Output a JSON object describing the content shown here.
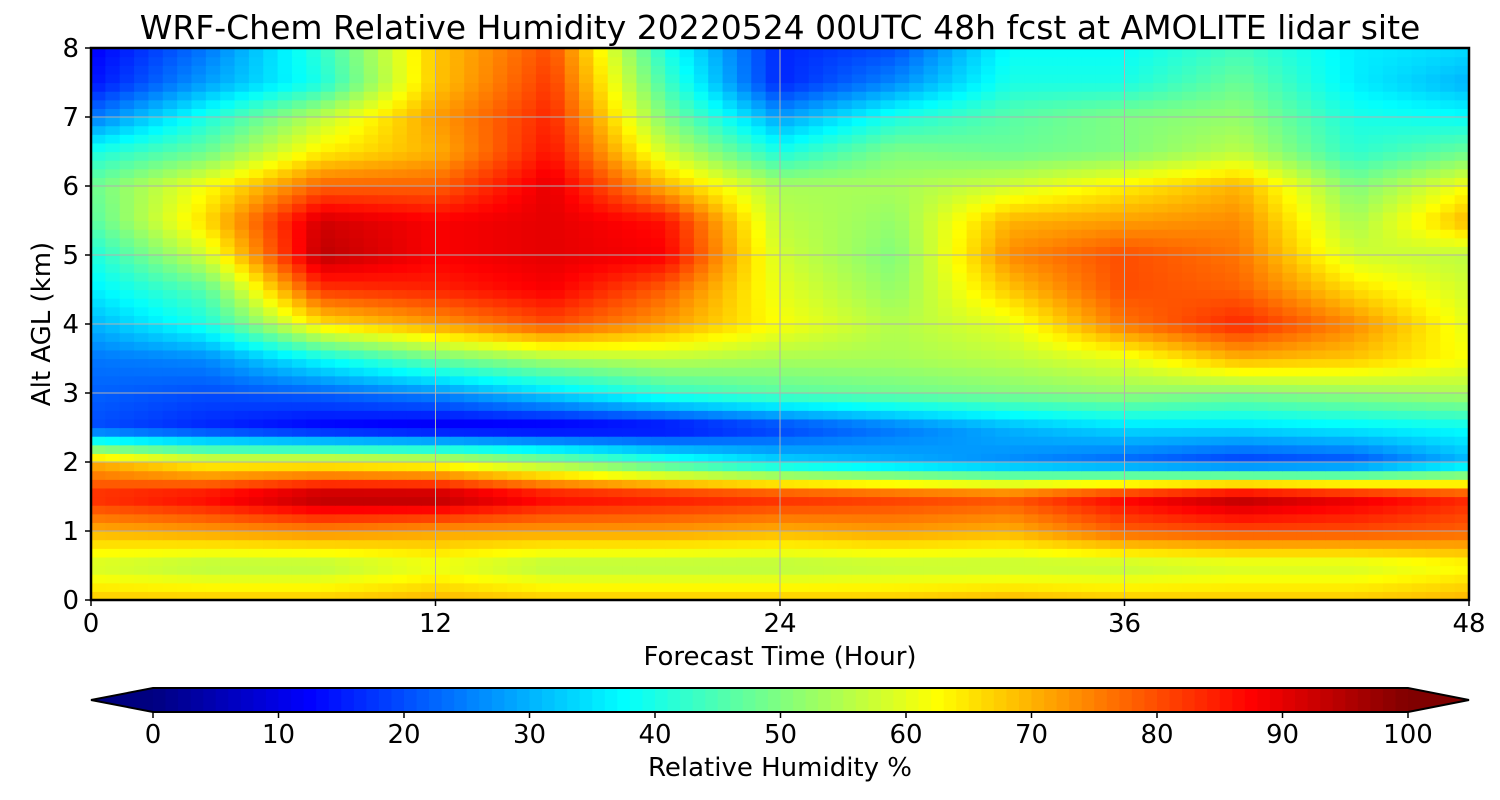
{
  "chart_data": {
    "type": "heatmap",
    "title": "WRF-Chem Relative Humidity 20220524 00UTC 48h fcst at AMOLITE lidar site",
    "xlabel": "Forecast Time (Hour)",
    "ylabel": "Alt AGL (km)",
    "xlim": [
      0,
      48
    ],
    "ylim": [
      0,
      8
    ],
    "x_ticks": [
      0,
      12,
      24,
      36,
      48
    ],
    "y_ticks": [
      0,
      1,
      2,
      3,
      4,
      5,
      6,
      7,
      8
    ],
    "grid": true,
    "colormap": "jet",
    "colorbar": {
      "label": "Relative Humidity %",
      "range": [
        0,
        100
      ],
      "ticks": [
        0,
        10,
        20,
        30,
        40,
        50,
        60,
        70,
        80,
        90,
        100
      ],
      "orientation": "horizontal",
      "extend": "both"
    },
    "x": [
      0,
      4,
      8,
      12,
      16,
      20,
      24,
      28,
      32,
      36,
      40,
      44,
      48
    ],
    "y": [
      0,
      0.5,
      1,
      1.5,
      2,
      2.5,
      3,
      3.5,
      4,
      4.5,
      5,
      5.5,
      6,
      6.5,
      7,
      7.5,
      8
    ],
    "z": [
      [
        68,
        68,
        68,
        70,
        68,
        68,
        68,
        68,
        70,
        68,
        68,
        68,
        70
      ],
      [
        58,
        55,
        55,
        60,
        55,
        55,
        55,
        56,
        56,
        56,
        58,
        58,
        62
      ],
      [
        70,
        72,
        74,
        72,
        72,
        72,
        70,
        72,
        70,
        78,
        80,
        80,
        78
      ],
      [
        84,
        88,
        96,
        96,
        88,
        86,
        84,
        82,
        80,
        88,
        95,
        90,
        84
      ],
      [
        70,
        62,
        62,
        60,
        52,
        42,
        34,
        30,
        26,
        22,
        18,
        20,
        30
      ],
      [
        20,
        16,
        12,
        10,
        10,
        12,
        18,
        24,
        30,
        34,
        34,
        36,
        38
      ],
      [
        22,
        20,
        22,
        26,
        34,
        42,
        46,
        48,
        50,
        52,
        50,
        52,
        54
      ],
      [
        24,
        26,
        38,
        48,
        54,
        56,
        54,
        54,
        56,
        60,
        70,
        68,
        62
      ],
      [
        30,
        40,
        65,
        72,
        80,
        72,
        62,
        55,
        60,
        76,
        84,
        74,
        60
      ],
      [
        36,
        46,
        82,
        84,
        88,
        78,
        60,
        52,
        68,
        80,
        78,
        66,
        58
      ],
      [
        40,
        58,
        94,
        88,
        90,
        88,
        58,
        50,
        74,
        80,
        76,
        58,
        56
      ],
      [
        46,
        66,
        92,
        88,
        90,
        86,
        56,
        52,
        70,
        72,
        74,
        54,
        70
      ],
      [
        48,
        62,
        78,
        78,
        90,
        70,
        54,
        54,
        58,
        64,
        70,
        50,
        62
      ],
      [
        40,
        48,
        64,
        70,
        86,
        58,
        40,
        50,
        48,
        50,
        56,
        42,
        48
      ],
      [
        24,
        40,
        56,
        72,
        84,
        50,
        28,
        40,
        46,
        50,
        52,
        40,
        38
      ],
      [
        14,
        28,
        40,
        68,
        82,
        44,
        16,
        26,
        40,
        40,
        48,
        36,
        30
      ],
      [
        12,
        24,
        42,
        68,
        80,
        40,
        16,
        20,
        38,
        38,
        44,
        36,
        34
      ]
    ]
  }
}
